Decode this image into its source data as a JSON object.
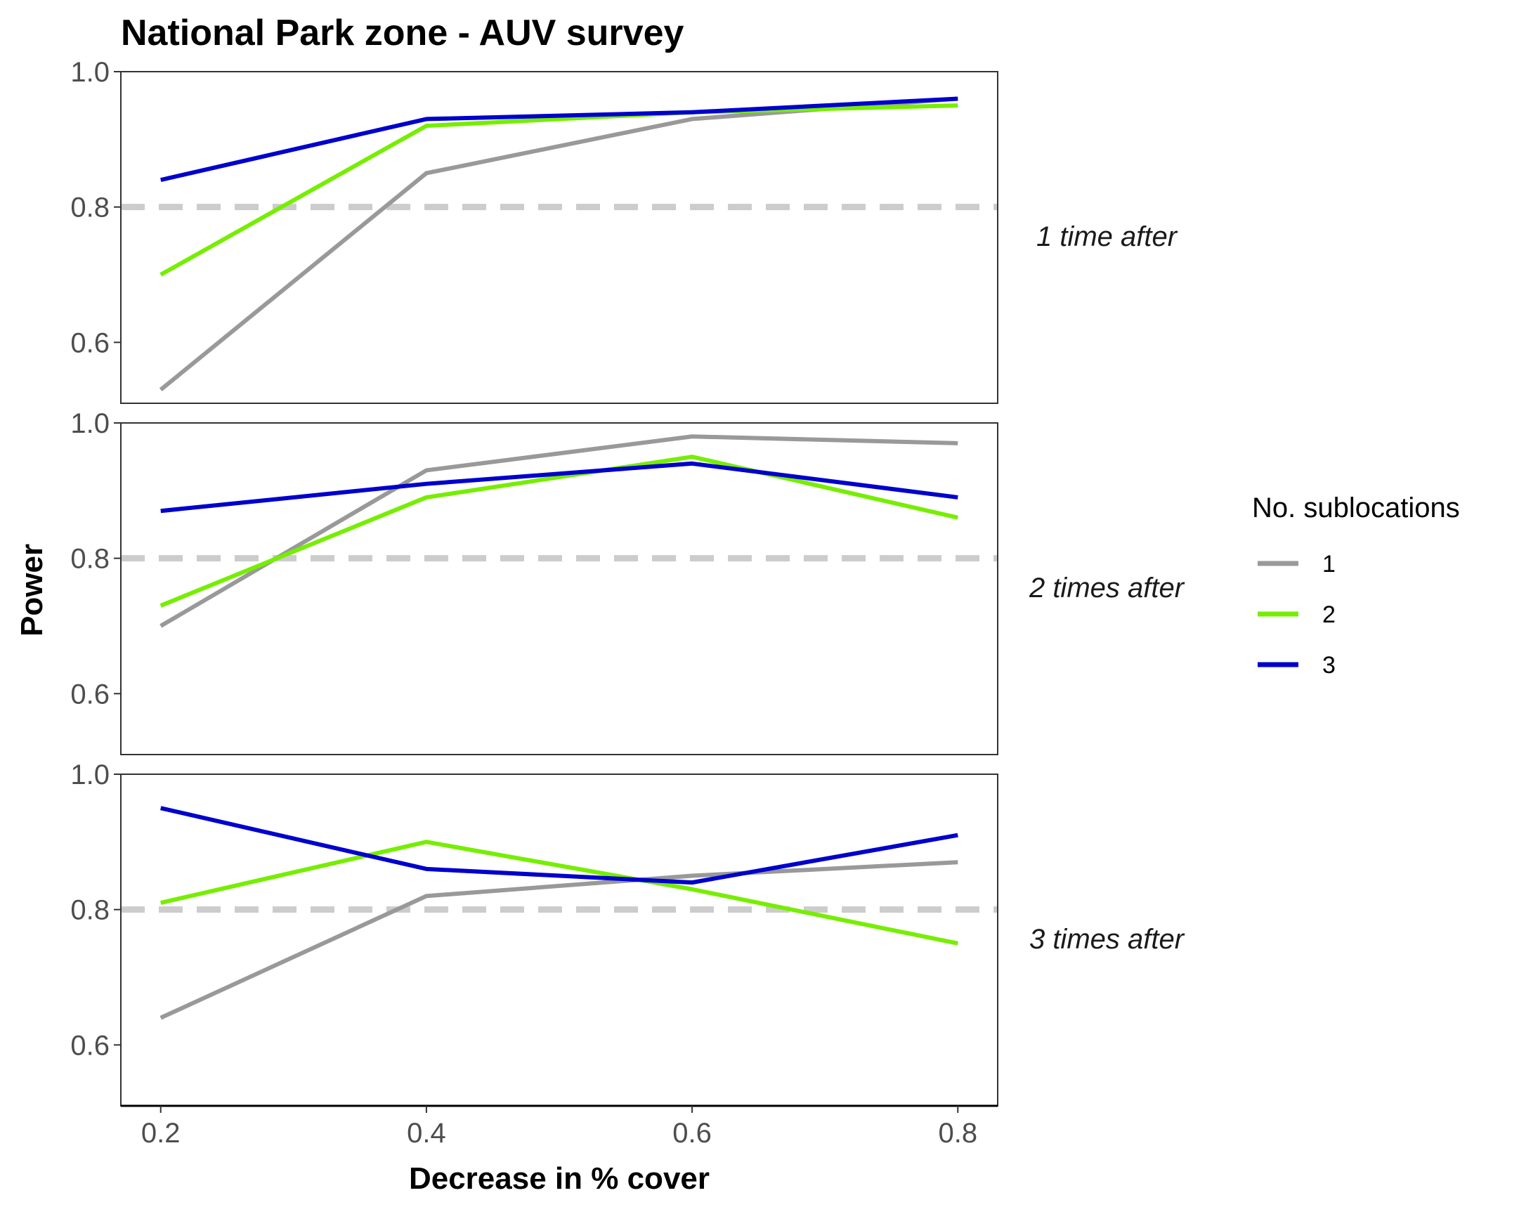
{
  "chart_data": {
    "type": "line",
    "title": "National Park zone - AUV survey",
    "xlabel": "Decrease in % cover",
    "ylabel": "Power",
    "x": [
      0.2,
      0.4,
      0.6,
      0.8
    ],
    "x_ticks": [
      "0.2",
      "0.4",
      "0.6",
      "0.8"
    ],
    "xlim": [
      0.17,
      0.83
    ],
    "ylim": [
      0.51,
      1.0
    ],
    "y_ticks": [
      "0.6",
      "0.8",
      "1.0"
    ],
    "reference_line": {
      "y": 0.8,
      "style": "dashed",
      "color": "#cccccc"
    },
    "grid": false,
    "legend": {
      "title": "No. sublocations",
      "placement": "right",
      "entries": [
        "1",
        "2",
        "3"
      ]
    },
    "colors": {
      "1": "#999999",
      "2": "#76ee00",
      "3": "#0000cd"
    },
    "facets": [
      {
        "label": "1 time after",
        "series": [
          {
            "name": "1",
            "values": [
              0.53,
              0.85,
              0.93,
              0.96
            ]
          },
          {
            "name": "2",
            "values": [
              0.7,
              0.92,
              0.94,
              0.95
            ]
          },
          {
            "name": "3",
            "values": [
              0.84,
              0.93,
              0.94,
              0.96
            ]
          }
        ]
      },
      {
        "label": "2 times after",
        "series": [
          {
            "name": "1",
            "values": [
              0.7,
              0.93,
              0.98,
              0.97
            ]
          },
          {
            "name": "2",
            "values": [
              0.73,
              0.89,
              0.95,
              0.86
            ]
          },
          {
            "name": "3",
            "values": [
              0.87,
              0.91,
              0.94,
              0.89
            ]
          }
        ]
      },
      {
        "label": "3 times after",
        "series": [
          {
            "name": "1",
            "values": [
              0.64,
              0.82,
              0.85,
              0.87
            ]
          },
          {
            "name": "2",
            "values": [
              0.81,
              0.9,
              0.83,
              0.75
            ]
          },
          {
            "name": "3",
            "values": [
              0.95,
              0.86,
              0.84,
              0.91
            ]
          }
        ]
      }
    ]
  }
}
